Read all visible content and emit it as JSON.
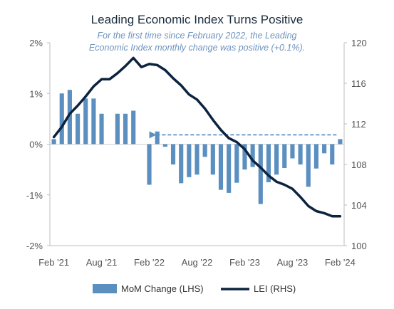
{
  "chart_data": {
    "type": "bar+line",
    "title": "Leading Economic Index Turns Positive",
    "subtitle_line1": "For the first time since February 2022, the Leading",
    "subtitle_line2": "Economic Index monthly change was positive (+0.1%).",
    "x_tick_labels": [
      "Feb '21",
      "Aug '21",
      "Feb '22",
      "Aug '22",
      "Feb '23",
      "Aug '23",
      "Feb '24"
    ],
    "x_tick_months": [
      0,
      6,
      12,
      18,
      24,
      30,
      36
    ],
    "months_count": 37,
    "y_left": {
      "ylim": [
        -2,
        2
      ],
      "ticks": [
        -2,
        -1,
        0,
        1,
        2
      ],
      "tick_labels": [
        "-2%",
        "-1%",
        "0%",
        "1%",
        "2%"
      ]
    },
    "y_right": {
      "ylim": [
        100,
        120
      ],
      "ticks": [
        100,
        104,
        108,
        112,
        116,
        120
      ],
      "tick_labels": [
        "100",
        "104",
        "108",
        "112",
        "116",
        "120"
      ]
    },
    "series": [
      {
        "name": "MoM Change (LHS)",
        "kind": "bar",
        "axis": "left",
        "color": "#5b8fc0",
        "values": [
          0.1,
          1.0,
          1.07,
          0.6,
          0.9,
          0.9,
          0.6,
          0.0,
          0.6,
          0.6,
          0.66,
          0.0,
          -0.8,
          0.25,
          -0.05,
          -0.4,
          -0.77,
          -0.65,
          -0.6,
          -0.25,
          -0.6,
          -0.9,
          -0.96,
          -0.76,
          -0.5,
          -0.45,
          -1.18,
          -0.75,
          -0.6,
          -0.47,
          -0.28,
          -0.4,
          -0.84,
          -0.48,
          -0.18,
          -0.4,
          0.1
        ]
      },
      {
        "name": "LEI (RHS)",
        "kind": "line",
        "axis": "right",
        "color": "#0c2340",
        "values": [
          110.7,
          111.7,
          113.0,
          113.8,
          114.7,
          115.7,
          116.4,
          116.4,
          117.0,
          117.7,
          118.5,
          117.6,
          117.9,
          117.8,
          117.3,
          116.5,
          115.8,
          114.9,
          114.4,
          113.5,
          112.4,
          111.4,
          110.6,
          110.2,
          109.5,
          108.4,
          107.7,
          106.9,
          106.3,
          106.0,
          105.6,
          104.8,
          103.9,
          103.4,
          103.2,
          102.9,
          102.9
        ]
      }
    ],
    "annotation": {
      "kind": "dashed-arrow",
      "from_month": 36,
      "to_month": 12,
      "value": 0.1,
      "color": "#5b8fc0"
    },
    "legend": {
      "placement": "bottom",
      "bar_label": "MoM Change (LHS)",
      "line_label": "LEI (RHS)"
    }
  }
}
